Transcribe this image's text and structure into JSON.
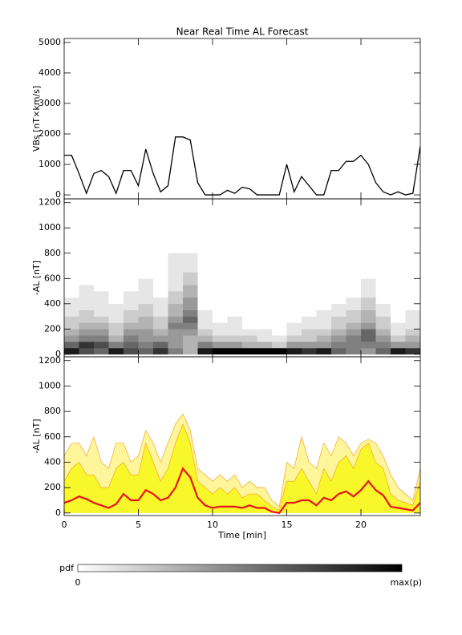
{
  "chart_data": [
    {
      "type": "line",
      "title": "Near Real Time AL Forecast",
      "ylabel": "VBs [nT×km/s]",
      "color": "#000000",
      "x": [
        0,
        0.5,
        1,
        1.5,
        2,
        2.5,
        3,
        3.5,
        4,
        4.5,
        5,
        5.5,
        6,
        6.5,
        7,
        7.5,
        8,
        8.5,
        9,
        9.5,
        10,
        10.5,
        11,
        11.5,
        12,
        12.5,
        13,
        13.5,
        14,
        14.5,
        15,
        15.5,
        16,
        16.5,
        17,
        17.5,
        18,
        18.5,
        19,
        19.5,
        20,
        20.5,
        21,
        21.5,
        22,
        22.5,
        23,
        23.5,
        24
      ],
      "values": [
        1300,
        1300,
        700,
        50,
        700,
        800,
        600,
        50,
        800,
        800,
        300,
        1500,
        700,
        100,
        300,
        1900,
        1900,
        1800,
        400,
        0,
        0,
        0,
        150,
        50,
        250,
        200,
        0,
        0,
        0,
        0,
        1000,
        100,
        600,
        300,
        0,
        0,
        800,
        800,
        1100,
        1100,
        1300,
        1000,
        400,
        100,
        0,
        100,
        0,
        50,
        1600
      ],
      "xlim": [
        0,
        24
      ],
      "xticks": [
        0,
        5,
        10,
        15,
        20
      ],
      "ylim": [
        -130,
        5130
      ],
      "yticks": [
        0,
        1000,
        2000,
        3000,
        4000,
        5000
      ]
    },
    {
      "type": "heatmap",
      "ylabel": "-AL [nT]",
      "x_bins": [
        0,
        1,
        2,
        3,
        4,
        5,
        6,
        7,
        8,
        9,
        10,
        11,
        12,
        13,
        14,
        15,
        16,
        17,
        18,
        19,
        20,
        21,
        22,
        23,
        24
      ],
      "y_bins": [
        0,
        50,
        100,
        150,
        200,
        250,
        300,
        350,
        400,
        450,
        500,
        550,
        600,
        650,
        700,
        750,
        800
      ],
      "z": [
        [
          0.9,
          0.6,
          0.4,
          0.3,
          0.2,
          0.2,
          0.1,
          0.1,
          0.1,
          0,
          0,
          0,
          0,
          0,
          0,
          0
        ],
        [
          0.7,
          0.8,
          0.5,
          0.4,
          0.3,
          0.2,
          0.2,
          0.1,
          0.1,
          0.1,
          0.1,
          0,
          0,
          0,
          0,
          0
        ],
        [
          0.6,
          0.7,
          0.5,
          0.4,
          0.3,
          0.2,
          0.1,
          0.1,
          0.1,
          0.1,
          0,
          0,
          0,
          0,
          0,
          0
        ],
        [
          0.9,
          0.5,
          0.3,
          0.2,
          0.2,
          0.1,
          0.1,
          0.1,
          0,
          0,
          0,
          0,
          0,
          0,
          0,
          0
        ],
        [
          0.7,
          0.6,
          0.5,
          0.4,
          0.3,
          0.2,
          0.2,
          0.1,
          0.1,
          0.1,
          0,
          0,
          0,
          0,
          0,
          0
        ],
        [
          0.6,
          0.5,
          0.4,
          0.4,
          0.3,
          0.3,
          0.2,
          0.2,
          0.1,
          0.1,
          0.1,
          0.1,
          0,
          0,
          0,
          0
        ],
        [
          0.8,
          0.6,
          0.4,
          0.3,
          0.2,
          0.2,
          0.1,
          0.1,
          0.1,
          0,
          0,
          0,
          0,
          0,
          0,
          0
        ],
        [
          0.5,
          0.4,
          0.4,
          0.4,
          0.5,
          0.4,
          0.3,
          0.3,
          0.2,
          0.2,
          0.1,
          0.1,
          0.1,
          0.1,
          0.1,
          0.1
        ],
        [
          0.3,
          0.3,
          0.3,
          0.4,
          0.5,
          0.6,
          0.5,
          0.4,
          0.4,
          0.3,
          0.3,
          0.2,
          0.2,
          0.1,
          0.1,
          0.1
        ],
        [
          0.9,
          0.5,
          0.3,
          0.2,
          0.1,
          0.1,
          0.1,
          0,
          0,
          0,
          0,
          0,
          0,
          0,
          0,
          0
        ],
        [
          1,
          0.4,
          0.2,
          0.1,
          0.1,
          0,
          0,
          0,
          0,
          0,
          0,
          0,
          0,
          0,
          0,
          0
        ],
        [
          1,
          0.4,
          0.2,
          0.1,
          0.1,
          0.1,
          0,
          0,
          0,
          0,
          0,
          0,
          0,
          0,
          0,
          0
        ],
        [
          1,
          0.3,
          0.2,
          0.1,
          0,
          0,
          0,
          0,
          0,
          0,
          0,
          0,
          0,
          0,
          0,
          0
        ],
        [
          1,
          0.3,
          0.1,
          0.1,
          0,
          0,
          0,
          0,
          0,
          0,
          0,
          0,
          0,
          0,
          0,
          0
        ],
        [
          1,
          0.2,
          0.1,
          0,
          0,
          0,
          0,
          0,
          0,
          0,
          0,
          0,
          0,
          0,
          0,
          0
        ],
        [
          0.9,
          0.4,
          0.2,
          0.1,
          0.1,
          0,
          0,
          0,
          0,
          0,
          0,
          0,
          0,
          0,
          0,
          0
        ],
        [
          0.8,
          0.4,
          0.2,
          0.2,
          0.1,
          0.1,
          0,
          0,
          0,
          0,
          0,
          0,
          0,
          0,
          0,
          0
        ],
        [
          0.9,
          0.4,
          0.3,
          0.2,
          0.1,
          0.1,
          0.1,
          0,
          0,
          0,
          0,
          0,
          0,
          0,
          0,
          0
        ],
        [
          0.6,
          0.5,
          0.4,
          0.3,
          0.2,
          0.2,
          0.1,
          0.1,
          0,
          0,
          0,
          0,
          0,
          0,
          0,
          0
        ],
        [
          0.5,
          0.5,
          0.5,
          0.4,
          0.3,
          0.2,
          0.2,
          0.1,
          0.1,
          0,
          0,
          0,
          0,
          0,
          0,
          0
        ],
        [
          0.4,
          0.5,
          0.6,
          0.6,
          0.4,
          0.3,
          0.3,
          0.2,
          0.2,
          0.1,
          0.1,
          0.1,
          0,
          0,
          0,
          0
        ],
        [
          0.6,
          0.5,
          0.4,
          0.3,
          0.2,
          0.2,
          0.1,
          0.1,
          0,
          0,
          0,
          0,
          0,
          0,
          0,
          0
        ],
        [
          0.9,
          0.4,
          0.2,
          0.1,
          0.1,
          0,
          0,
          0,
          0,
          0,
          0,
          0,
          0,
          0,
          0,
          0
        ],
        [
          0.8,
          0.4,
          0.3,
          0.2,
          0.1,
          0.1,
          0.1,
          0,
          0,
          0,
          0,
          0,
          0,
          0,
          0,
          0
        ]
      ],
      "colormap": [
        "#ffffff",
        "#000000"
      ],
      "colorbar": {
        "label": "pdf",
        "min_label": "0",
        "max_label": "max(p)"
      },
      "xlim": [
        0,
        24
      ],
      "xticks": [
        0,
        5,
        10,
        15,
        20
      ],
      "ylim": [
        -20,
        1230
      ],
      "yticks": [
        0,
        200,
        400,
        600,
        800,
        1000,
        1200
      ]
    },
    {
      "type": "area",
      "ylabel": "-AL [nT]",
      "xlabel": "Time [min]",
      "x": [
        0,
        0.5,
        1,
        1.5,
        2,
        2.5,
        3,
        3.5,
        4,
        4.5,
        5,
        5.5,
        6,
        6.5,
        7,
        7.5,
        8,
        8.5,
        9,
        9.5,
        10,
        10.5,
        11,
        11.5,
        12,
        12.5,
        13,
        13.5,
        14,
        14.5,
        15,
        15.5,
        16,
        16.5,
        17,
        17.5,
        18,
        18.5,
        19,
        19.5,
        20,
        20.5,
        21,
        21.5,
        22,
        22.5,
        23,
        23.5,
        24
      ],
      "series": [
        {
          "type": "area",
          "color": "#fff59a",
          "stroke": "#f5a623",
          "values": [
            450,
            550,
            550,
            450,
            600,
            400,
            350,
            550,
            550,
            400,
            450,
            650,
            550,
            400,
            550,
            700,
            780,
            650,
            350,
            300,
            250,
            300,
            250,
            300,
            200,
            250,
            200,
            200,
            100,
            50,
            400,
            350,
            600,
            400,
            350,
            550,
            450,
            600,
            550,
            450,
            550,
            580,
            550,
            450,
            300,
            200,
            150,
            100,
            350
          ]
        },
        {
          "type": "area",
          "color": "#f7f72a",
          "stroke": "#f5a623",
          "values": [
            250,
            350,
            400,
            300,
            300,
            200,
            200,
            350,
            400,
            300,
            300,
            550,
            400,
            250,
            350,
            550,
            700,
            550,
            250,
            200,
            150,
            200,
            150,
            200,
            120,
            150,
            150,
            100,
            50,
            20,
            250,
            250,
            350,
            250,
            150,
            350,
            250,
            400,
            450,
            350,
            500,
            550,
            400,
            350,
            150,
            100,
            80,
            60,
            250
          ]
        },
        {
          "type": "line",
          "color": "#e8141c",
          "values": [
            80,
            100,
            130,
            110,
            80,
            60,
            40,
            70,
            150,
            100,
            100,
            180,
            150,
            100,
            120,
            200,
            350,
            280,
            120,
            60,
            40,
            50,
            50,
            50,
            40,
            60,
            40,
            40,
            10,
            0,
            80,
            80,
            100,
            100,
            60,
            120,
            100,
            150,
            170,
            130,
            180,
            250,
            180,
            140,
            50,
            40,
            30,
            20,
            80
          ]
        }
      ],
      "xlim": [
        0,
        24
      ],
      "xticks": [
        0,
        5,
        10,
        15,
        20
      ],
      "ylim": [
        -20,
        1230
      ],
      "yticks": [
        0,
        200,
        400,
        600,
        800,
        1000,
        1200
      ]
    }
  ]
}
